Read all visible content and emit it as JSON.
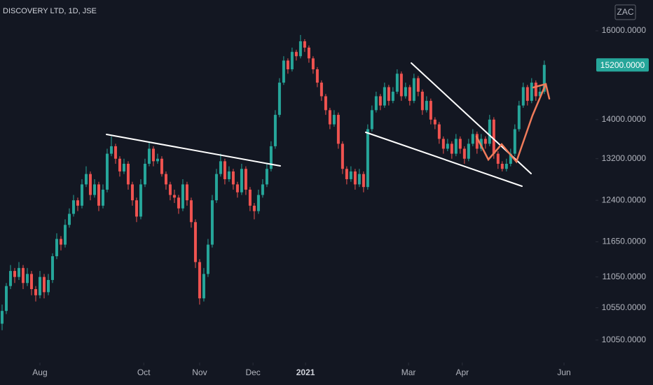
{
  "chart_data": {
    "type": "candlestick",
    "title": "DISCOVERY LTD, 1D, JSE",
    "currency": "ZAC",
    "log_scale": true,
    "up_color": "#26a69a",
    "down_color": "#ef5350",
    "ylim": [
      9797,
      16758
    ],
    "yticks": [
      {
        "value": 16000,
        "label": "16000.0000"
      },
      {
        "value": 14000,
        "label": "14000.0000"
      },
      {
        "value": 13200,
        "label": "13200.0000"
      },
      {
        "value": 12400,
        "label": "12400.0000"
      },
      {
        "value": 11650,
        "label": "11650.0000"
      },
      {
        "value": 11050,
        "label": "11050.0000"
      },
      {
        "value": 10550,
        "label": "10550.0000"
      },
      {
        "value": 10050,
        "label": "10050.0000"
      }
    ],
    "xlim": [
      -0.5,
      141.2
    ],
    "xticks": [
      {
        "value": 9,
        "label": "Aug"
      },
      {
        "value": 33.7,
        "label": "Oct"
      },
      {
        "value": 47,
        "label": "Nov"
      },
      {
        "value": 59.7,
        "label": "Dec"
      },
      {
        "value": 72.2,
        "label": "2021"
      },
      {
        "value": 96.7,
        "label": "Mar"
      },
      {
        "value": 109.5,
        "label": "Apr"
      },
      {
        "value": 133.7,
        "label": "Jun"
      }
    ],
    "last_price": {
      "value": 15200,
      "label": "15200.0000"
    },
    "ohlc": [
      [
        10300,
        10600,
        10200,
        10500
      ],
      [
        10500,
        10950,
        10450,
        10900
      ],
      [
        10900,
        11250,
        10850,
        11150
      ],
      [
        11150,
        11200,
        10950,
        11050
      ],
      [
        11050,
        11300,
        11000,
        11200
      ],
      [
        11200,
        11250,
        10850,
        10950
      ],
      [
        10950,
        11200,
        10900,
        11100
      ],
      [
        11100,
        11150,
        10750,
        10850
      ],
      [
        10850,
        10900,
        10650,
        10750
      ],
      [
        10750,
        11150,
        10700,
        11050
      ],
      [
        11050,
        11100,
        10700,
        10800
      ],
      [
        10800,
        11100,
        10750,
        11000
      ],
      [
        11000,
        11450,
        10950,
        11400
      ],
      [
        11400,
        11800,
        11350,
        11700
      ],
      [
        11700,
        11750,
        11500,
        11600
      ],
      [
        11600,
        12050,
        11550,
        11950
      ],
      [
        11950,
        12250,
        11900,
        12150
      ],
      [
        12150,
        12500,
        12100,
        12400
      ],
      [
        12400,
        12450,
        12200,
        12300
      ],
      [
        12300,
        12800,
        12250,
        12700
      ],
      [
        12700,
        13050,
        12650,
        12900
      ],
      [
        12900,
        12950,
        12400,
        12500
      ],
      [
        12500,
        12800,
        12450,
        12700
      ],
      [
        12700,
        12750,
        12200,
        12300
      ],
      [
        12300,
        12700,
        12250,
        12600
      ],
      [
        12600,
        13400,
        12550,
        13300
      ],
      [
        13300,
        13650,
        13250,
        13450
      ],
      [
        13450,
        13500,
        13100,
        13200
      ],
      [
        13200,
        13250,
        12850,
        12950
      ],
      [
        12950,
        13200,
        12900,
        13100
      ],
      [
        13100,
        13150,
        12600,
        12700
      ],
      [
        12700,
        12750,
        12300,
        12400
      ],
      [
        12400,
        12450,
        12000,
        12100
      ],
      [
        12100,
        12800,
        12050,
        12700
      ],
      [
        12700,
        13200,
        12650,
        13100
      ],
      [
        13100,
        13550,
        13050,
        13400
      ],
      [
        13400,
        13450,
        13050,
        13150
      ],
      [
        13150,
        13300,
        13100,
        13200
      ],
      [
        13200,
        13250,
        12850,
        12900
      ],
      [
        12900,
        12950,
        12600,
        12700
      ],
      [
        12700,
        12750,
        12400,
        12500
      ],
      [
        12500,
        12600,
        12350,
        12450
      ],
      [
        12450,
        12500,
        12150,
        12250
      ],
      [
        12250,
        12800,
        12200,
        12700
      ],
      [
        12700,
        12750,
        12300,
        12400
      ],
      [
        12400,
        12450,
        11900,
        12000
      ],
      [
        12000,
        12050,
        11200,
        11300
      ],
      [
        11300,
        11350,
        10600,
        10700
      ],
      [
        10700,
        11200,
        10650,
        11100
      ],
      [
        11100,
        11700,
        11050,
        11600
      ],
      [
        11600,
        12500,
        11550,
        12400
      ],
      [
        12400,
        13000,
        12350,
        12900
      ],
      [
        12900,
        13300,
        12850,
        13150
      ],
      [
        13150,
        13200,
        12700,
        12800
      ],
      [
        12800,
        13050,
        12750,
        12950
      ],
      [
        12950,
        13000,
        12600,
        12700
      ],
      [
        12700,
        12750,
        12450,
        12550
      ],
      [
        12550,
        13100,
        12500,
        13000
      ],
      [
        13000,
        13050,
        12500,
        12600
      ],
      [
        12600,
        12650,
        12200,
        12300
      ],
      [
        12300,
        12350,
        12050,
        12200
      ],
      [
        12200,
        12600,
        12150,
        12500
      ],
      [
        12500,
        12800,
        12450,
        12700
      ],
      [
        12700,
        13100,
        12650,
        13000
      ],
      [
        13000,
        13550,
        12950,
        13450
      ],
      [
        13450,
        14200,
        13400,
        14100
      ],
      [
        14100,
        14900,
        14050,
        14800
      ],
      [
        14800,
        15400,
        14750,
        15300
      ],
      [
        15300,
        15350,
        15000,
        15100
      ],
      [
        15100,
        15600,
        15050,
        15500
      ],
      [
        15500,
        15550,
        15300,
        15400
      ],
      [
        15400,
        15900,
        15350,
        15750
      ],
      [
        15750,
        15800,
        15500,
        15600
      ],
      [
        15600,
        15650,
        15250,
        15350
      ],
      [
        15350,
        15400,
        15000,
        15100
      ],
      [
        15100,
        15150,
        14700,
        14800
      ],
      [
        14800,
        14850,
        14400,
        14500
      ],
      [
        14500,
        14550,
        14100,
        14200
      ],
      [
        14200,
        14250,
        13800,
        13900
      ],
      [
        13900,
        14200,
        13850,
        14100
      ],
      [
        14100,
        14150,
        13400,
        13500
      ],
      [
        13500,
        13550,
        12900,
        13000
      ],
      [
        13000,
        13050,
        12700,
        12800
      ],
      [
        12800,
        13050,
        12750,
        12950
      ],
      [
        12950,
        13000,
        12600,
        12700
      ],
      [
        12700,
        13000,
        12650,
        12900
      ],
      [
        12900,
        12950,
        12550,
        12650
      ],
      [
        12650,
        13900,
        12600,
        13800
      ],
      [
        13800,
        14300,
        13750,
        14200
      ],
      [
        14200,
        14600,
        14150,
        14500
      ],
      [
        14500,
        14550,
        14200,
        14300
      ],
      [
        14300,
        14800,
        14250,
        14700
      ],
      [
        14700,
        14750,
        14300,
        14400
      ],
      [
        14400,
        14700,
        14350,
        14600
      ],
      [
        14600,
        15100,
        14550,
        15000
      ],
      [
        15000,
        15050,
        14400,
        14500
      ],
      [
        14500,
        14800,
        14450,
        14700
      ],
      [
        14700,
        14750,
        14300,
        14400
      ],
      [
        14400,
        15000,
        14350,
        14900
      ],
      [
        14900,
        14950,
        14500,
        14600
      ],
      [
        14600,
        14650,
        14100,
        14200
      ],
      [
        14200,
        14500,
        14150,
        14400
      ],
      [
        14400,
        14450,
        13900,
        14000
      ],
      [
        14000,
        14050,
        13800,
        13900
      ],
      [
        13900,
        13950,
        13500,
        13600
      ],
      [
        13600,
        13650,
        13300,
        13400
      ],
      [
        13400,
        13600,
        13350,
        13500
      ],
      [
        13500,
        13550,
        13200,
        13300
      ],
      [
        13300,
        13700,
        13250,
        13600
      ],
      [
        13600,
        13650,
        13300,
        13400
      ],
      [
        13400,
        13450,
        13100,
        13200
      ],
      [
        13200,
        13600,
        13150,
        13500
      ],
      [
        13500,
        13800,
        13450,
        13700
      ],
      [
        13700,
        13750,
        13300,
        13400
      ],
      [
        13400,
        13700,
        13350,
        13600
      ],
      [
        13600,
        13650,
        13400,
        13500
      ],
      [
        13500,
        14100,
        13450,
        14000
      ],
      [
        14000,
        14050,
        13200,
        13300
      ],
      [
        13300,
        13350,
        13000,
        13100
      ],
      [
        13100,
        13150,
        12950,
        13000
      ],
      [
        13000,
        13200,
        12950,
        13100
      ],
      [
        13100,
        13400,
        13050,
        13300
      ],
      [
        13300,
        13900,
        13250,
        13800
      ],
      [
        13800,
        14400,
        13750,
        14300
      ],
      [
        14300,
        14800,
        14250,
        14700
      ],
      [
        14700,
        14750,
        14300,
        14400
      ],
      [
        14400,
        14900,
        14350,
        14800
      ],
      [
        14800,
        14850,
        14400,
        14500
      ],
      [
        14500,
        14700,
        14450,
        14600
      ],
      [
        14600,
        15300,
        14550,
        15200
      ]
    ]
  }
}
